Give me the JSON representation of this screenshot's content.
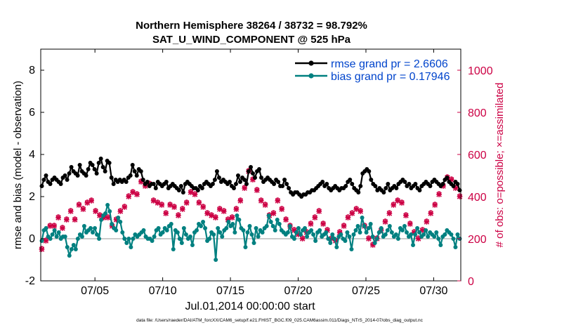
{
  "chart_data": {
    "type": "line",
    "title_line1": "Northern Hemisphere 38264 / 38732 = 98.792%",
    "title_line2": "SAT_U_WIND_COMPONENT @ 525 hPa",
    "ylabel_left": "rmse and bias (model - observation)",
    "ylabel_right": "# of obs: o=possible; ×=assimilated",
    "xlabel": "Jul.01,2014 00:00:00 start",
    "footer": "data file: /Users/raeder/DAI/ATM_forcXX/CAM6_setup/f.e21.FHIST_BGC.f09_025.CAM6assim.011/Diags_NTrS_2014-07/obs_diag_output.nc",
    "xlim": [
      1.0,
      32.0
    ],
    "ylim_left": [
      -2,
      9
    ],
    "ylim_right": [
      0,
      1100
    ],
    "yticks_left": [
      -2,
      0,
      2,
      4,
      6,
      8
    ],
    "yticks_right": [
      0,
      200,
      400,
      600,
      800,
      1000
    ],
    "xticks": [
      {
        "x": 5,
        "label": "07/05"
      },
      {
        "x": 10,
        "label": "07/10"
      },
      {
        "x": 15,
        "label": "07/15"
      },
      {
        "x": 20,
        "label": "07/20"
      },
      {
        "x": 25,
        "label": "07/25"
      },
      {
        "x": 30,
        "label": "07/30"
      }
    ],
    "colors": {
      "rmse": "#000000",
      "bias": "#008080",
      "obs": "#cc0044",
      "legend_text": "#0044cc",
      "zero_line": "#bbbbbb"
    },
    "series": [
      {
        "name": "rmse grand pr = 2.6606",
        "axis": "left",
        "values": [
          2.5,
          2.8,
          3.0,
          2.7,
          2.6,
          2.8,
          2.9,
          2.8,
          2.7,
          2.6,
          2.9,
          3.0,
          2.8,
          3.1,
          3.4,
          3.2,
          3.1,
          3.0,
          3.5,
          3.2,
          3.1,
          3.0,
          3.3,
          3.6,
          3.5,
          3.3,
          3.1,
          3.6,
          3.8,
          3.4,
          3.2,
          3.7,
          3.6,
          2.9,
          2.6,
          2.8,
          2.7,
          2.8,
          2.7,
          2.8,
          2.7,
          2.9,
          3.0,
          3.5,
          3.2,
          3.0,
          3.3,
          3.2,
          2.8,
          2.6,
          2.7,
          2.5,
          2.6,
          2.6,
          2.4,
          2.7,
          2.6,
          2.5,
          2.6,
          2.7,
          2.4,
          2.5,
          2.6,
          2.5,
          2.4,
          2.3,
          2.5,
          2.2,
          2.6,
          2.7,
          2.6,
          2.5,
          2.4,
          2.4,
          2.3,
          2.5,
          2.4,
          2.6,
          2.7,
          2.6,
          2.5,
          2.6,
          2.8,
          3.2,
          2.9,
          2.7,
          2.8,
          2.7,
          2.6,
          2.7,
          2.5,
          2.4,
          2.6,
          3.0,
          2.7,
          2.9,
          2.8,
          2.6,
          3.2,
          3.4,
          3.1,
          2.9,
          3.2,
          3.3,
          2.9,
          2.7,
          2.8,
          2.9,
          2.8,
          2.7,
          2.6,
          2.8,
          2.7,
          2.5,
          2.5,
          2.8,
          2.6,
          2.4,
          2.2,
          2.1,
          2.2,
          2.2,
          2.1,
          2.0,
          2.1,
          2.1,
          2.2,
          2.2,
          2.3,
          2.3,
          2.4,
          2.5,
          2.6,
          2.7,
          2.5,
          2.6,
          2.4,
          2.3,
          2.4,
          2.5,
          2.4,
          2.3,
          2.4,
          2.4,
          2.5,
          2.7,
          2.8,
          2.6,
          2.4,
          2.3,
          2.2,
          2.5,
          3.1,
          3.2,
          3.3,
          3.2,
          2.8,
          2.6,
          2.5,
          2.3,
          2.4,
          2.3,
          2.2,
          2.4,
          2.6,
          2.3,
          2.4,
          2.5,
          2.4,
          2.6,
          2.7,
          2.8,
          2.7,
          2.5,
          2.6,
          2.4,
          2.5,
          2.6,
          2.4,
          2.3,
          2.5,
          2.6,
          2.7,
          2.6,
          2.5,
          2.7,
          2.8,
          2.7,
          2.6,
          2.5,
          2.6,
          2.8,
          2.9,
          2.7,
          2.6,
          2.5,
          2.7,
          2.6,
          2.3
        ]
      },
      {
        "name": "bias grand pr = 0.17946",
        "axis": "left",
        "values": [
          -0.1,
          0.4,
          0.5,
          0.1,
          0.0,
          0.2,
          0.4,
          0.1,
          0.3,
          0.0,
          0.1,
          0.1,
          -0.4,
          -0.8,
          -0.5,
          -0.3,
          -0.5,
          0.0,
          0.2,
          0.1,
          0.6,
          0.3,
          0.4,
          0.5,
          0.3,
          0.5,
          0.2,
          0.0,
          0.9,
          1.1,
          1.2,
          1.6,
          1.3,
          0.7,
          0.5,
          0.4,
          1.0,
          0.8,
          0.3,
          0.0,
          -0.2,
          0.0,
          -0.4,
          0.0,
          0.2,
          0.1,
          0.2,
          0.3,
          0.4,
          0.1,
          0.0,
          0.0,
          -0.1,
          0.1,
          0.4,
          0.5,
          0.2,
          0.3,
          0.5,
          0.4,
          0.6,
          0.7,
          -0.5,
          0.4,
          0.3,
          0.0,
          -0.2,
          0.5,
          0.2,
          0.0,
          0.1,
          -0.3,
          0.3,
          0.4,
          0.7,
          0.6,
          0.8,
          0.5,
          -0.1,
          0.0,
          0.3,
          0.2,
          -1.0,
          0.5,
          0.3,
          0.1,
          0.4,
          0.5,
          0.8,
          0.6,
          0.7,
          0.3,
          1.1,
          0.9,
          0.5,
          0.4,
          -0.4,
          0.3,
          0.6,
          0.2,
          -0.2,
          0.5,
          0.1,
          0.4,
          0.3,
          0.5,
          0.6,
          1.1,
          0.8,
          0.6,
          0.4,
          0.9,
          0.7,
          0.4,
          0.3,
          0.2,
          0.3,
          0.6,
          0.1,
          0.0,
          0.3,
          0.5,
          0.2,
          0.4,
          0.5,
          0.1,
          0.3,
          0.4,
          0.2,
          -0.1,
          0.3,
          0.4,
          0.1,
          0.2,
          0.3,
          0.0,
          -0.2,
          0.2,
          0.0,
          -0.4,
          0.1,
          0.2,
          0.0,
          -0.1,
          0.3,
          0.1,
          -0.5,
          0.2,
          0.4,
          0.6,
          0.3,
          1.0,
          0.6,
          0.3,
          0.5,
          0.7,
          0.1,
          -0.2,
          0.0,
          0.3,
          0.5,
          0.1,
          0.2,
          0.4,
          0.6,
          0.3,
          0.1,
          0.2,
          0.0,
          0.5,
          0.4,
          0.6,
          0.3,
          0.1,
          0.2,
          -0.3,
          0.2,
          0.5,
          0.3,
          0.1,
          0.2,
          0.4,
          0.1,
          0.3,
          0.2,
          0.1,
          0.3,
          0.0,
          -0.3,
          0.1,
          0.2,
          0.4,
          0.3,
          0.2,
          0.0,
          -0.4,
          0.2,
          0.0
        ]
      },
      {
        "name": "obs assimilated",
        "axis": "right",
        "marker": "x",
        "values": [
          150,
          170,
          190,
          210,
          260,
          240,
          260,
          280,
          300,
          270,
          250,
          260,
          290,
          310,
          330,
          300,
          290,
          320,
          360,
          340,
          340,
          350,
          370,
          410,
          380,
          360,
          330,
          300,
          310,
          290,
          300,
          320,
          300,
          270,
          260,
          280,
          290,
          310,
          330,
          340,
          350,
          370,
          400,
          440,
          420,
          430,
          410,
          450,
          470,
          440,
          450,
          430,
          460,
          390,
          380,
          360,
          370,
          390,
          360,
          330,
          320,
          340,
          360,
          380,
          350,
          330,
          310,
          320,
          340,
          350,
          370,
          390,
          420,
          470,
          410,
          380,
          370,
          360,
          350,
          330,
          320,
          300,
          310,
          290,
          300,
          320,
          340,
          350,
          330,
          310,
          290,
          280,
          300,
          320,
          340,
          360,
          380,
          410,
          440,
          470,
          520,
          540,
          480,
          460,
          430,
          400,
          380,
          350,
          360,
          330,
          310,
          300,
          320,
          350,
          380,
          360,
          340,
          320,
          290,
          270,
          260,
          250,
          240,
          230,
          220,
          210,
          200,
          210,
          230,
          250,
          270,
          280,
          300,
          320,
          330,
          300,
          270,
          250,
          240,
          220,
          200,
          180,
          190,
          210,
          230,
          240,
          260,
          290,
          300,
          310,
          320,
          330,
          340,
          350,
          330,
          290,
          260,
          230,
          200,
          180,
          170,
          180,
          200,
          220,
          240,
          260,
          280,
          300,
          320,
          350,
          360,
          370,
          380,
          390,
          370,
          340,
          310,
          290,
          270,
          250,
          230,
          210,
          200,
          220,
          240,
          260,
          280,
          300,
          320,
          340,
          360,
          380,
          410,
          430,
          450,
          470,
          490,
          500,
          480,
          460,
          440,
          420,
          400
        ]
      },
      {
        "name": "obs possible",
        "axis": "right",
        "marker": "o",
        "values": [
          155,
          175,
          195,
          215,
          265,
          245,
          265,
          285,
          305,
          275,
          255,
          265,
          295,
          315,
          335,
          305,
          295,
          325,
          365,
          345,
          345,
          355,
          375,
          415,
          385,
          365,
          335,
          305,
          315,
          295,
          305,
          325,
          305,
          275,
          265,
          285,
          295,
          315,
          335,
          345,
          355,
          375,
          405,
          445,
          425,
          435,
          415,
          455,
          475,
          445,
          455,
          435,
          465,
          395,
          385,
          365,
          375,
          395,
          365,
          335,
          325,
          345,
          365,
          385,
          355,
          335,
          315,
          325,
          345,
          355,
          375,
          395,
          425,
          475,
          415,
          385,
          375,
          365,
          355,
          335,
          325,
          305,
          315,
          295,
          305,
          325,
          345,
          355,
          335,
          315,
          295,
          285,
          305,
          325,
          345,
          365,
          385,
          415,
          445,
          475,
          525,
          545,
          485,
          465,
          435,
          405,
          385,
          355,
          365,
          335,
          315,
          305,
          325,
          355,
          385,
          365,
          345,
          325,
          295,
          275,
          265,
          255,
          245,
          235,
          225,
          215,
          205,
          215,
          235,
          255,
          275,
          285,
          305,
          325,
          335,
          305,
          275,
          255,
          245,
          225,
          205,
          185,
          195,
          215,
          235,
          245,
          265,
          295,
          305,
          315,
          325,
          335,
          345,
          355,
          335,
          295,
          265,
          235,
          205,
          185,
          175,
          185,
          205,
          225,
          245,
          265,
          285,
          305,
          325,
          355,
          365,
          375,
          385,
          395,
          375,
          345,
          315,
          295,
          275,
          255,
          235,
          215,
          205,
          225,
          245,
          265,
          285,
          305,
          325,
          345,
          365,
          385,
          415,
          435,
          455,
          475,
          495,
          505,
          485,
          465,
          445,
          425,
          405
        ]
      }
    ]
  }
}
